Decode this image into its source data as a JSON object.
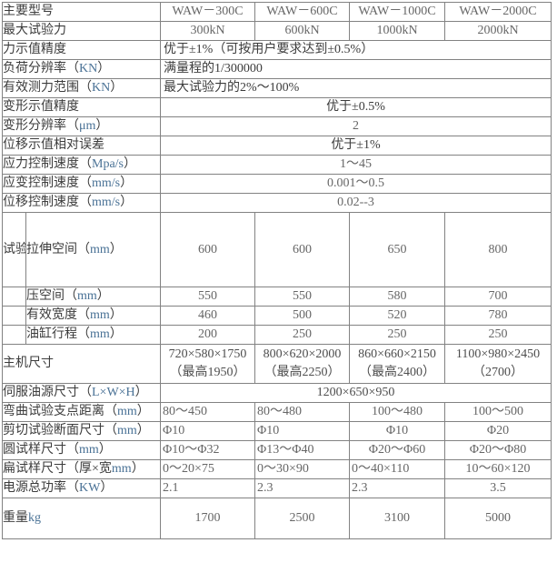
{
  "page": {
    "background": "#ffffff",
    "border_color": "#828282",
    "label_text_color": "#3c3c3c",
    "number_text_color": "#666666",
    "latin_label_color": "#4a7296"
  },
  "rows": {
    "model": {
      "label": "主要型号",
      "values": [
        "WAW－300C",
        "WAW－600C",
        "WAW－1000C",
        "WAW－2000C"
      ]
    },
    "max_force": {
      "label": "最大试验力",
      "values": [
        "300kN",
        "600kN",
        "1000kN",
        "2000kN"
      ]
    },
    "force_accuracy": {
      "label": "力示值精度",
      "value": "优于±1%（可按用户要求达到±0.5%）"
    },
    "load_resolution": {
      "label": "负荷分辨率（KN）",
      "value": "满量程的1/300000"
    },
    "force_range": {
      "label": "有效测力范围（KN）",
      "value": "最大试验力的2%～100%"
    },
    "deform_accuracy": {
      "label": "变形示值精度",
      "value": "优于±0.5%"
    },
    "deform_resolution": {
      "label": "变形分辨率（μm）",
      "value": "2"
    },
    "disp_error": {
      "label": "位移示值相对误差",
      "value": "优于±1%"
    },
    "stress_speed": {
      "label": "应力控制速度（Mpa/s）",
      "value": "1～45"
    },
    "strain_speed": {
      "label": "应变控制速度（mm/s）",
      "value": "0.001～0.5"
    },
    "disp_speed": {
      "label": "位移控制速度（mm/s）",
      "value": "0.02--3"
    },
    "space_group": {
      "label": "试验空间"
    },
    "tension_space": {
      "label": "拉伸空间（mm）",
      "values": [
        "600",
        "600",
        "650",
        "800"
      ]
    },
    "compress_space": {
      "label": "压空间（mm）",
      "values": [
        "550",
        "550",
        "580",
        "700"
      ]
    },
    "effective_width": {
      "label": "有效宽度（mm）",
      "values": [
        "460",
        "500",
        "520",
        "780"
      ]
    },
    "cylinder_stroke": {
      "label": "油缸行程（mm）",
      "values": [
        "200",
        "250",
        "250",
        "250"
      ]
    },
    "host_size": {
      "label": "主机尺寸",
      "line1": [
        "720×580×1750",
        "800×620×2000",
        "860×660×2150",
        "1100×980×2450"
      ],
      "line2": [
        "（最高1950）",
        "（最高2250）",
        "（最高2400）",
        "（2700）"
      ]
    },
    "servo_size": {
      "label": "伺服油源尺寸（L×W×H）",
      "value": "1200×650×950"
    },
    "bend_span": {
      "label": "弯曲试验支点距离（mm）",
      "values": [
        "80～450",
        "80～480",
        "100～480",
        "100～500"
      ]
    },
    "shear_section": {
      "label": "剪切试验断面尺寸（mm）",
      "values": [
        "Φ10",
        "Φ10",
        "Φ10",
        "Φ20"
      ]
    },
    "round_specimen": {
      "label": "圆试样尺寸（mm）",
      "values": [
        "Φ10～Φ32",
        "Φ13～Φ40",
        "Φ20～Φ60",
        "Φ20～Φ80"
      ]
    },
    "flat_specimen": {
      "label": "扁试样尺寸（厚×宽mm）",
      "values": [
        "0～20×75",
        "0～30×90",
        "0～40×110",
        "10～60×120"
      ]
    },
    "power": {
      "label": "电源总功率（KW）",
      "values": [
        "2.1",
        "2.3",
        "2.3",
        "3.5"
      ]
    },
    "weight": {
      "label": "重量kg",
      "values": [
        "1700",
        "2500",
        "3100",
        "5000"
      ]
    }
  }
}
